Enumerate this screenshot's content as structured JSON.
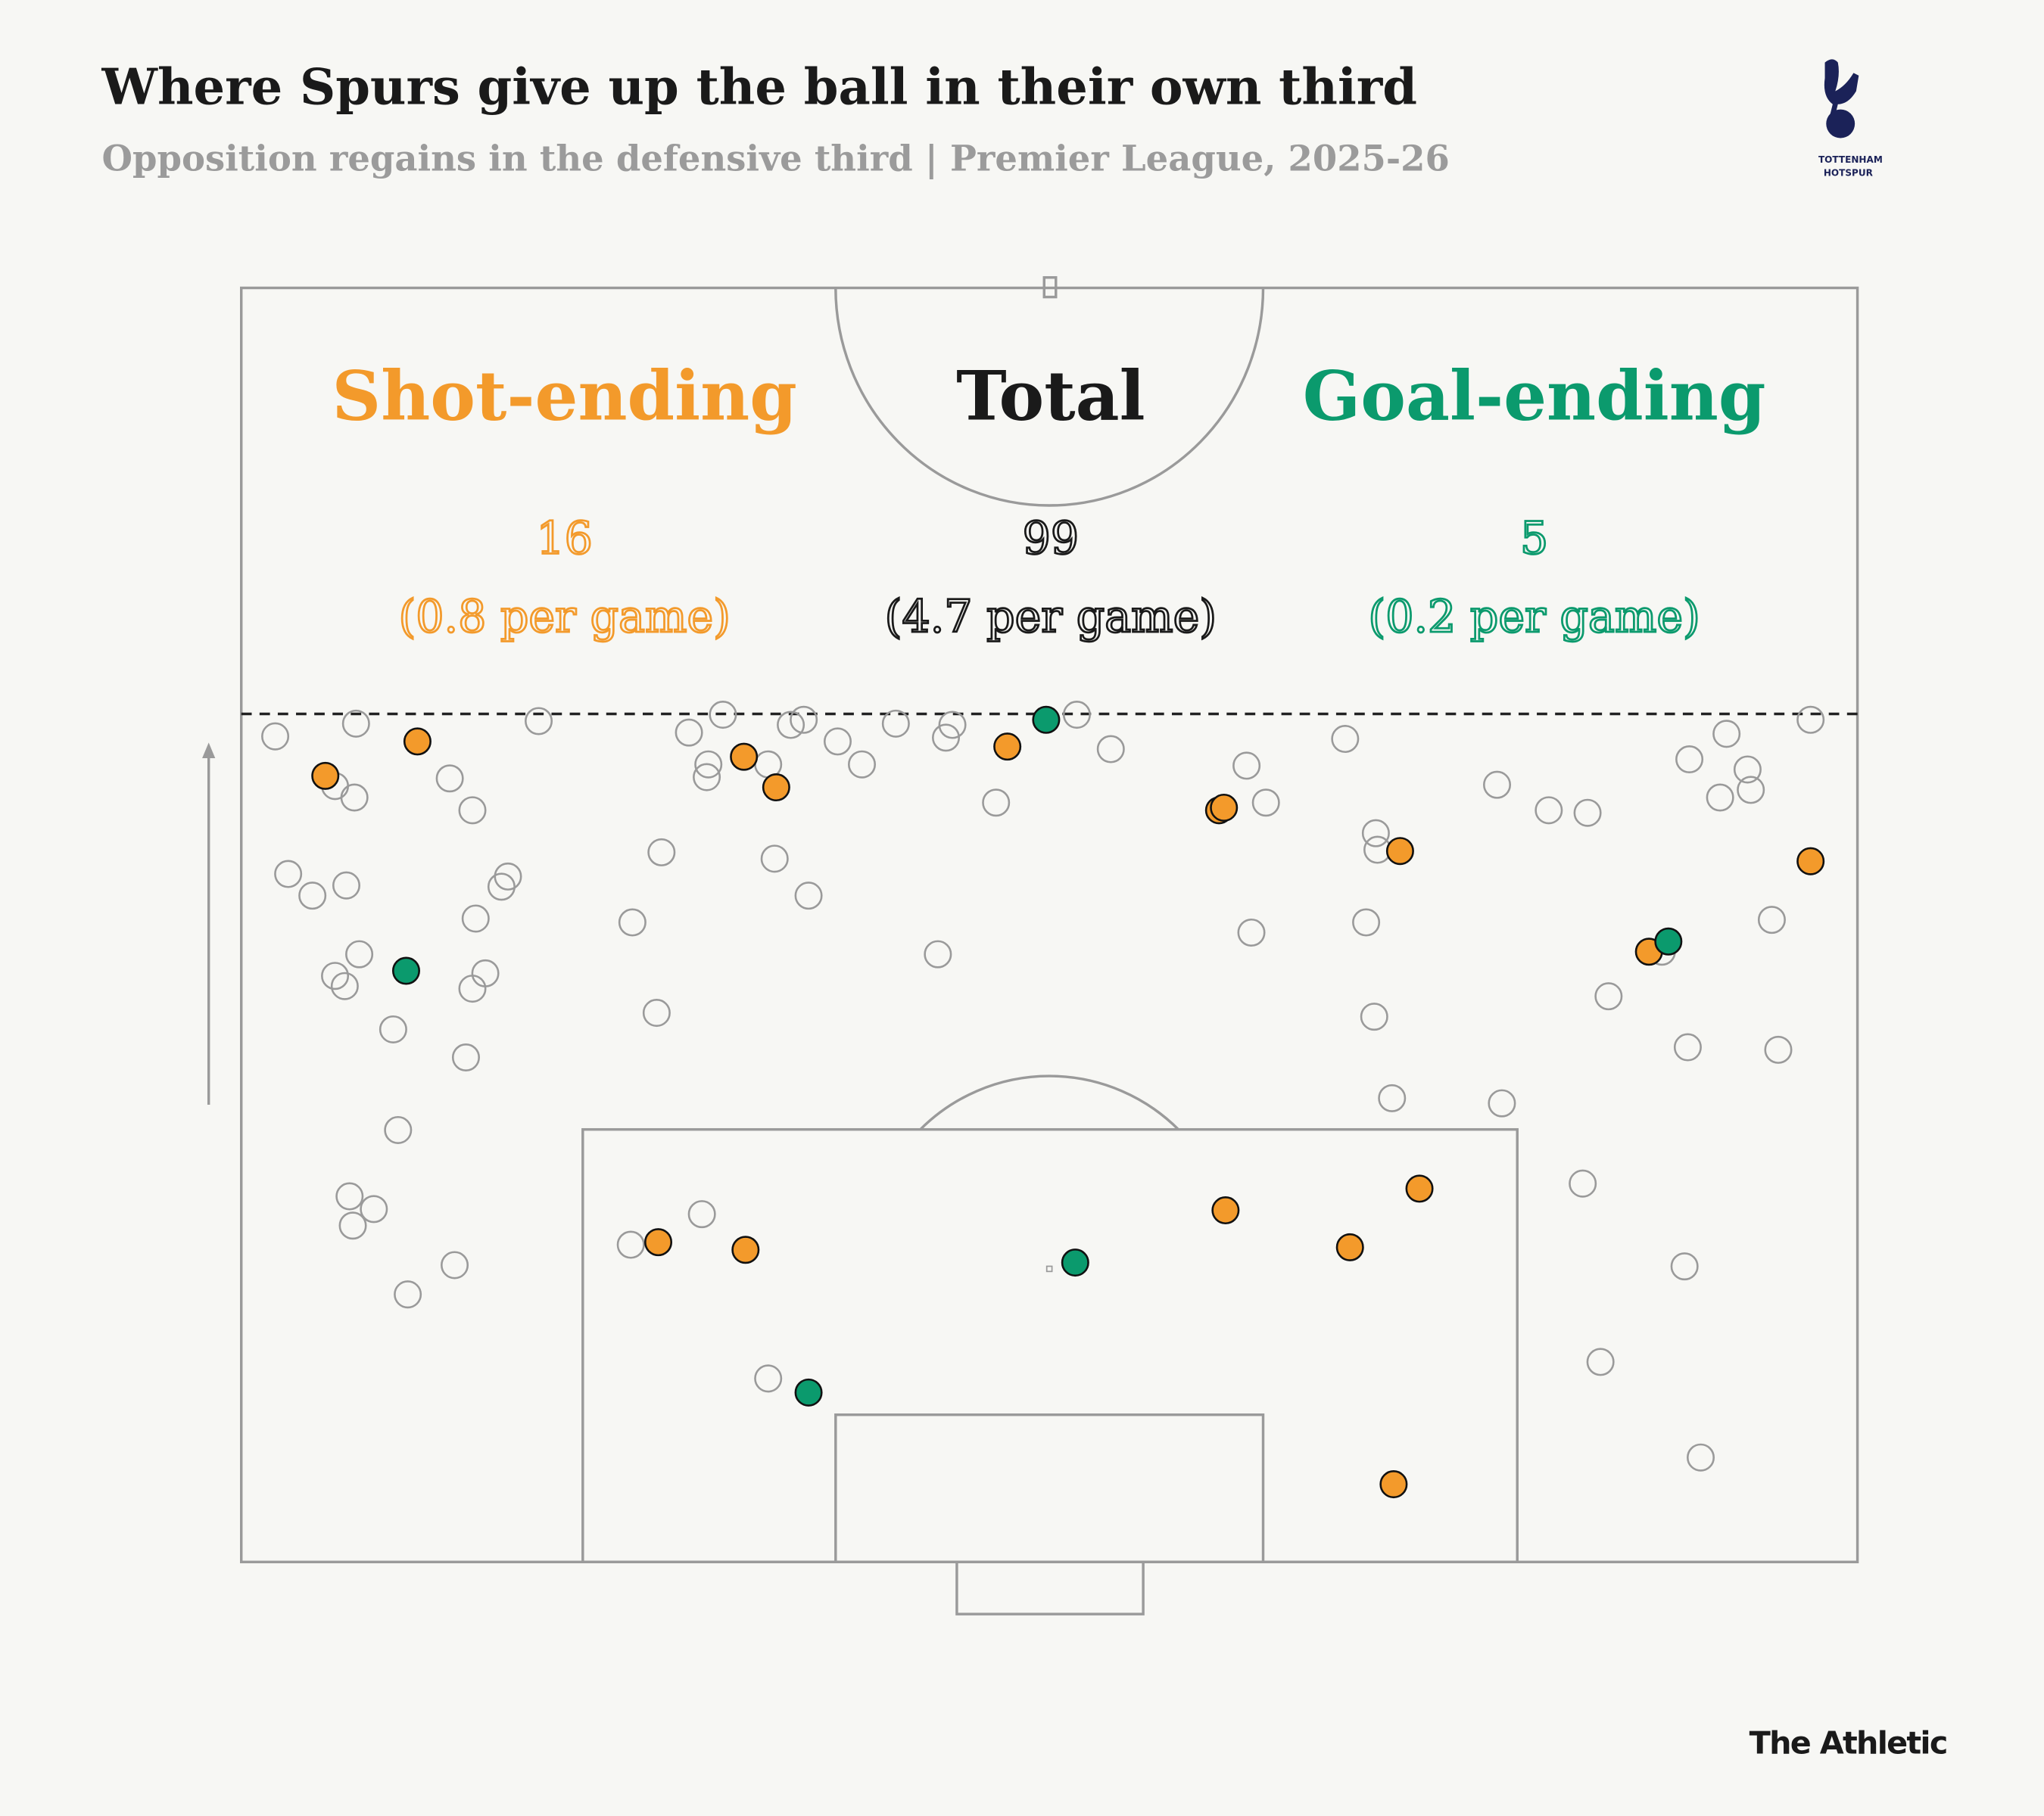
{
  "header": {
    "title": "Where Spurs give up the ball in their own third",
    "subtitle": "Opposition regains in the defensive third | Premier League, 2025-26"
  },
  "logo": {
    "name": "tottenham-hotspur-crest",
    "text_line1": "TOTTENHAM",
    "text_line2": "HOTSPUR",
    "color": "#1b2258"
  },
  "footer": {
    "brand": "The Athletic"
  },
  "colors": {
    "shot": "#f39a2b",
    "goal": "#0b9a6d",
    "total": "#1a1a1a",
    "other": "#9a9a9a",
    "background": "#f7f7f4"
  },
  "summary": {
    "shot": {
      "label": "Shot-ending",
      "count": "16",
      "per_game": "(0.8 per game)"
    },
    "total": {
      "label": "Total",
      "count": "99",
      "per_game": "(4.7 per game)"
    },
    "goal": {
      "label": "Goal-ending",
      "count": "5",
      "per_game": "(0.2 per game)"
    }
  },
  "chart_data": {
    "type": "scatter",
    "title": "Where Spurs give up the ball in their own third",
    "subtitle": "Opposition regains in the defensive third | Premier League, 2025-26",
    "xlim": [
      0,
      100
    ],
    "ylim": [
      0,
      100
    ],
    "attack_direction": "up",
    "defensive_third_line": 66.6,
    "series": [
      {
        "name": "Total",
        "style": "open",
        "points": [
          [
            2.1,
            64.8
          ],
          [
            7.1,
            65.8
          ],
          [
            5.8,
            60.9
          ],
          [
            7.0,
            60.0
          ],
          [
            12.9,
            61.5
          ],
          [
            14.3,
            59.0
          ],
          [
            18.4,
            66.0
          ],
          [
            2.9,
            54.0
          ],
          [
            4.4,
            52.3
          ],
          [
            6.5,
            53.1
          ],
          [
            16.1,
            53.0
          ],
          [
            16.5,
            53.8
          ],
          [
            7.3,
            47.7
          ],
          [
            5.8,
            46.0
          ],
          [
            6.4,
            45.2
          ],
          [
            14.5,
            50.5
          ],
          [
            15.1,
            46.2
          ],
          [
            14.3,
            45.0
          ],
          [
            9.4,
            41.8
          ],
          [
            13.9,
            39.6
          ],
          [
            9.7,
            33.9
          ],
          [
            6.7,
            28.7
          ],
          [
            8.2,
            27.7
          ],
          [
            6.9,
            26.4
          ],
          [
            13.2,
            23.3
          ],
          [
            10.3,
            21.0
          ],
          [
            27.7,
            65.1
          ],
          [
            29.8,
            66.5
          ],
          [
            28.9,
            62.6
          ],
          [
            28.8,
            61.6
          ],
          [
            32.6,
            62.6
          ],
          [
            34.0,
            65.7
          ],
          [
            34.8,
            66.1
          ],
          [
            36.9,
            64.4
          ],
          [
            38.4,
            62.6
          ],
          [
            40.5,
            65.8
          ],
          [
            44.0,
            65.7
          ],
          [
            43.6,
            64.7
          ],
          [
            51.7,
            66.5
          ],
          [
            53.8,
            63.8
          ],
          [
            26.0,
            55.7
          ],
          [
            33.0,
            55.2
          ],
          [
            35.1,
            52.3
          ],
          [
            24.2,
            50.2
          ],
          [
            25.7,
            43.1
          ],
          [
            46.7,
            59.6
          ],
          [
            43.1,
            47.7
          ],
          [
            62.2,
            62.5
          ],
          [
            63.4,
            59.6
          ],
          [
            62.5,
            49.4
          ],
          [
            68.3,
            64.6
          ],
          [
            70.2,
            57.2
          ],
          [
            70.3,
            55.9
          ],
          [
            69.6,
            50.2
          ],
          [
            70.1,
            42.8
          ],
          [
            71.2,
            36.4
          ],
          [
            77.7,
            61.0
          ],
          [
            80.9,
            59.0
          ],
          [
            83.3,
            58.8
          ],
          [
            78.0,
            36.0
          ],
          [
            84.6,
            44.4
          ],
          [
            89.6,
            63.0
          ],
          [
            91.9,
            65.0
          ],
          [
            93.2,
            62.2
          ],
          [
            93.4,
            60.6
          ],
          [
            91.5,
            60.0
          ],
          [
            97.1,
            66.1
          ],
          [
            94.7,
            50.4
          ],
          [
            87.9,
            47.9
          ],
          [
            89.5,
            40.4
          ],
          [
            95.1,
            40.2
          ],
          [
            83.0,
            29.7
          ],
          [
            89.3,
            23.2
          ],
          [
            84.1,
            15.7
          ],
          [
            90.3,
            8.2
          ],
          [
            24.1,
            24.9
          ],
          [
            28.5,
            27.3
          ],
          [
            32.6,
            14.4
          ]
        ]
      },
      {
        "name": "Shot-ending",
        "style": "filled",
        "points": [
          [
            5.2,
            61.7
          ],
          [
            10.9,
            64.4
          ],
          [
            31.1,
            63.2
          ],
          [
            33.1,
            60.8
          ],
          [
            47.4,
            64.0
          ],
          [
            60.5,
            59.0
          ],
          [
            60.8,
            59.2
          ],
          [
            71.7,
            55.8
          ],
          [
            97.1,
            55.0
          ],
          [
            87.1,
            47.9
          ],
          [
            25.8,
            25.1
          ],
          [
            31.2,
            24.5
          ],
          [
            60.9,
            27.6
          ],
          [
            72.9,
            29.3
          ],
          [
            68.6,
            24.7
          ],
          [
            71.3,
            6.1
          ]
        ]
      },
      {
        "name": "Goal-ending",
        "style": "filled",
        "points": [
          [
            49.8,
            66.1
          ],
          [
            10.2,
            46.4
          ],
          [
            88.3,
            48.7
          ],
          [
            51.6,
            23.5
          ],
          [
            35.1,
            13.3
          ]
        ]
      }
    ]
  }
}
